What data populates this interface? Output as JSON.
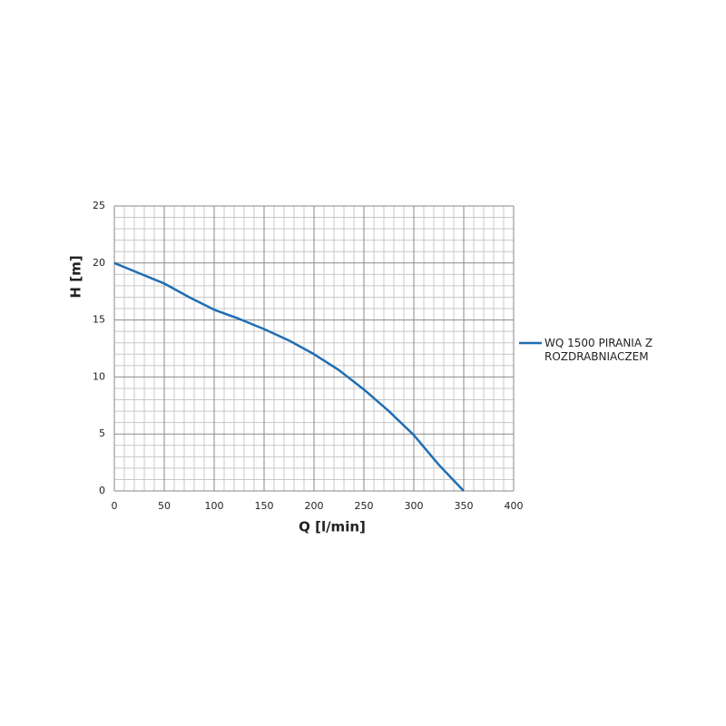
{
  "chart_data": {
    "type": "line",
    "x_label": "Q [l/min]",
    "y_label": "H [m]",
    "x": [
      0,
      25,
      50,
      75,
      100,
      125,
      150,
      175,
      200,
      225,
      250,
      275,
      300,
      325,
      350
    ],
    "series": [
      {
        "name": "WQ 1500 PIRANIA Z ROZDRABNIACZEM",
        "color": "#1f6eb4",
        "values": [
          20,
          19.1,
          18.2,
          17,
          15.9,
          15.1,
          14.2,
          13.2,
          12,
          10.6,
          8.9,
          7,
          4.9,
          2.3,
          0
        ]
      }
    ],
    "xlim": [
      0,
      400
    ],
    "xticks": [
      0,
      50,
      100,
      150,
      200,
      250,
      300,
      350,
      400
    ],
    "ylim": [
      0,
      25
    ],
    "yticks": [
      0,
      5,
      10,
      15,
      20,
      25
    ],
    "x_minor_ticks": [
      10,
      20,
      30,
      40,
      60,
      70,
      80,
      90,
      110,
      120,
      130,
      140,
      160,
      170,
      180,
      190,
      210,
      220,
      230,
      240,
      260,
      270,
      280,
      290,
      310,
      320,
      330,
      340,
      360,
      370,
      380,
      390
    ],
    "y_minor_ticks": [
      1,
      2,
      3,
      4,
      6,
      7,
      8,
      9,
      11,
      12,
      13,
      14,
      16,
      17,
      18,
      19,
      21,
      22,
      23,
      24
    ],
    "grid": true,
    "legend": "right"
  }
}
